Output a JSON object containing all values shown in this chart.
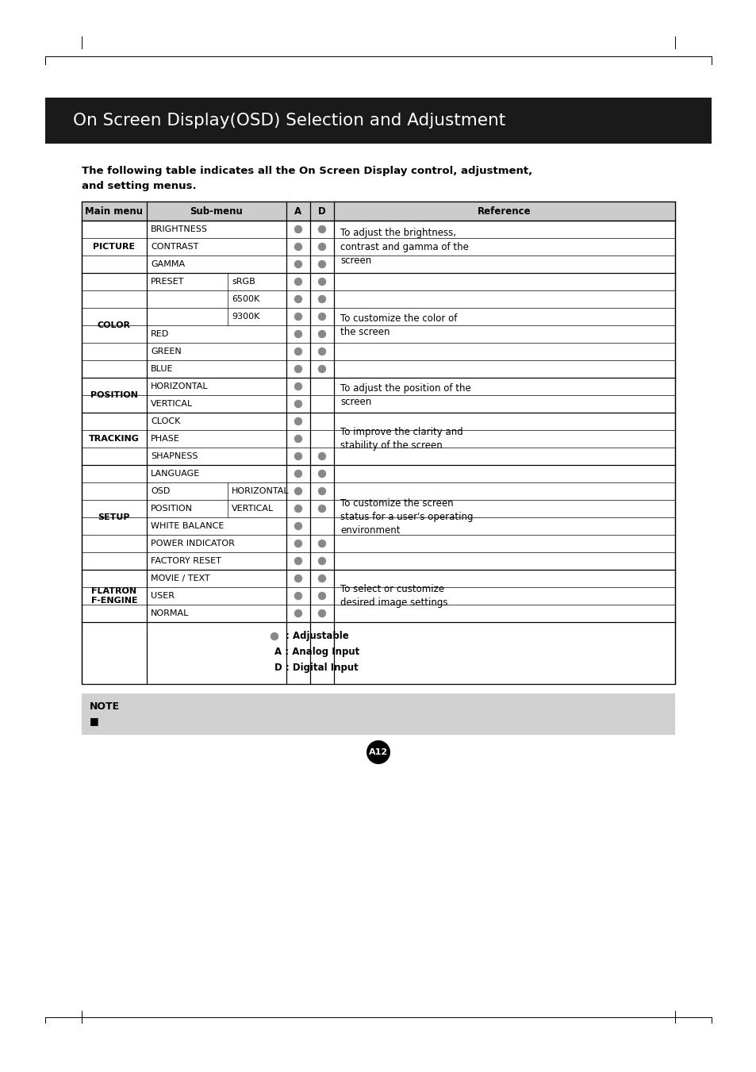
{
  "title": "On Screen Display(OSD) Selection and Adjustment",
  "intro_text": "The following table indicates all the On Screen Display control, adjustment,\nand setting menus.",
  "rows": [
    {
      "main": "PICTURE",
      "sub1": "BRIGHTNESS",
      "sub2": "",
      "A": true,
      "D": true,
      "ref": "To adjust the brightness,\ncontrast and gamma of the\nscreen",
      "ref_start": true
    },
    {
      "main": "",
      "sub1": "CONTRAST",
      "sub2": "",
      "A": true,
      "D": true,
      "ref": "",
      "ref_start": false
    },
    {
      "main": "",
      "sub1": "GAMMA",
      "sub2": "",
      "A": true,
      "D": true,
      "ref": "",
      "ref_start": false
    },
    {
      "main": "COLOR",
      "sub1": "PRESET",
      "sub2": "sRGB",
      "A": true,
      "D": true,
      "ref": "To customize the color of\nthe screen",
      "ref_start": true
    },
    {
      "main": "",
      "sub1": "",
      "sub2": "6500K",
      "A": true,
      "D": true,
      "ref": "",
      "ref_start": false
    },
    {
      "main": "",
      "sub1": "",
      "sub2": "9300K",
      "A": true,
      "D": true,
      "ref": "",
      "ref_start": false
    },
    {
      "main": "",
      "sub1": "RED",
      "sub2": "",
      "A": true,
      "D": true,
      "ref": "",
      "ref_start": false
    },
    {
      "main": "",
      "sub1": "GREEN",
      "sub2": "",
      "A": true,
      "D": true,
      "ref": "",
      "ref_start": false
    },
    {
      "main": "",
      "sub1": "BLUE",
      "sub2": "",
      "A": true,
      "D": true,
      "ref": "",
      "ref_start": false
    },
    {
      "main": "POSITION",
      "sub1": "HORIZONTAL",
      "sub2": "",
      "A": true,
      "D": false,
      "ref": "To adjust the position of the\nscreen",
      "ref_start": true
    },
    {
      "main": "",
      "sub1": "VERTICAL",
      "sub2": "",
      "A": true,
      "D": false,
      "ref": "",
      "ref_start": false
    },
    {
      "main": "TRACKING",
      "sub1": "CLOCK",
      "sub2": "",
      "A": true,
      "D": false,
      "ref": "To improve the clarity and\nstability of the screen",
      "ref_start": true
    },
    {
      "main": "",
      "sub1": "PHASE",
      "sub2": "",
      "A": true,
      "D": false,
      "ref": "",
      "ref_start": false
    },
    {
      "main": "",
      "sub1": "SHAPNESS",
      "sub2": "",
      "A": true,
      "D": true,
      "ref": "",
      "ref_start": false
    },
    {
      "main": "SETUP",
      "sub1": "LANGUAGE",
      "sub2": "",
      "A": true,
      "D": true,
      "ref": "To customize the screen\nstatus for a user's operating\nenvironment",
      "ref_start": true
    },
    {
      "main": "",
      "sub1": "OSD",
      "sub2": "HORIZONTAL",
      "A": true,
      "D": true,
      "ref": "",
      "ref_start": false
    },
    {
      "main": "",
      "sub1": "POSITION",
      "sub2": "VERTICAL",
      "A": true,
      "D": true,
      "ref": "",
      "ref_start": false
    },
    {
      "main": "",
      "sub1": "WHITE BALANCE",
      "sub2": "",
      "A": true,
      "D": false,
      "ref": "",
      "ref_start": false
    },
    {
      "main": "",
      "sub1": "POWER INDICATOR",
      "sub2": "",
      "A": true,
      "D": true,
      "ref": "",
      "ref_start": false
    },
    {
      "main": "",
      "sub1": "FACTORY RESET",
      "sub2": "",
      "A": true,
      "D": true,
      "ref": "",
      "ref_start": false
    },
    {
      "main": "FLATRON\nF-ENGINE",
      "sub1": "MOVIE / TEXT",
      "sub2": "",
      "A": true,
      "D": true,
      "ref": "To select or customize\ndesired image settings",
      "ref_start": true
    },
    {
      "main": "",
      "sub1": "USER",
      "sub2": "",
      "A": true,
      "D": true,
      "ref": "",
      "ref_start": false
    },
    {
      "main": "",
      "sub1": "NORMAL",
      "sub2": "",
      "A": true,
      "D": true,
      "ref": "",
      "ref_start": false
    }
  ],
  "page_label": "A12",
  "bg_color": "#ffffff",
  "header_bg": "#cccccc",
  "title_bg": "#1a1a1a",
  "title_color": "#ffffff",
  "note_bg": "#d0d0d0",
  "dot_color": "#888888"
}
